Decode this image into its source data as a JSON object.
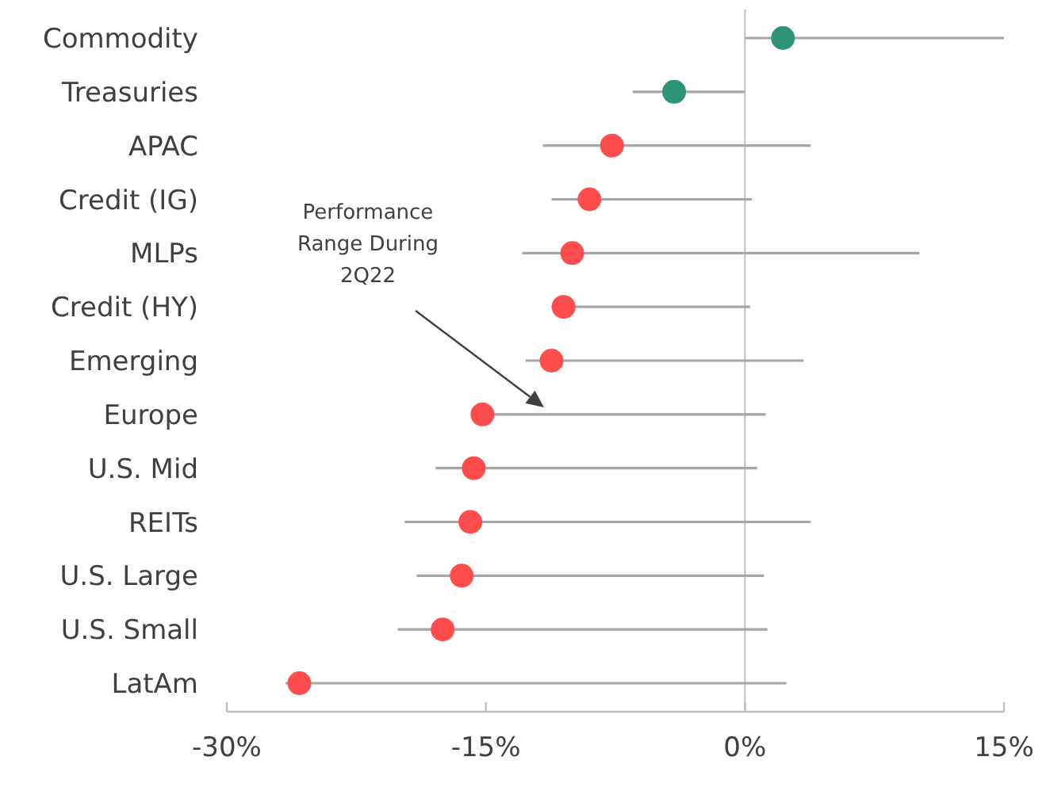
{
  "chart_data": {
    "type": "scatter",
    "orientation": "horizontal",
    "categories": [
      "Commodity",
      "Treasuries",
      "APAC",
      "Credit (IG)",
      "MLPs",
      "Credit (HY)",
      "Emerging",
      "Europe",
      "U.S. Mid",
      "REITs",
      "U.S. Large",
      "U.S. Small",
      "LatAm"
    ],
    "series": [
      {
        "values": [
          2.2,
          -4.1,
          -7.7,
          -9.0,
          -10.0,
          -10.5,
          -11.2,
          -15.2,
          -15.7,
          -15.9,
          -16.4,
          -17.5,
          -25.8
        ],
        "colors": [
          "#2e9477",
          "#2e9477",
          "#ff4c4c",
          "#ff4c4c",
          "#ff4c4c",
          "#ff4c4c",
          "#ff4c4c",
          "#ff4c4c",
          "#ff4c4c",
          "#ff4c4c",
          "#ff4c4c",
          "#ff4c4c",
          "#ff4c4c"
        ],
        "errors": [
          [
            0,
            15
          ],
          [
            -6.5,
            0
          ],
          [
            -11.7,
            3.8
          ],
          [
            -11.2,
            0.4
          ],
          [
            -12.9,
            10.1
          ],
          [
            -11.2,
            0.3
          ],
          [
            -12.7,
            3.4
          ],
          [
            -15.8,
            1.2
          ],
          [
            -17.9,
            0.7
          ],
          [
            -19.7,
            3.8
          ],
          [
            -19.0,
            1.1
          ],
          [
            -20.1,
            1.3
          ],
          [
            -26.6,
            2.4
          ]
        ]
      }
    ],
    "xlim": [
      -30,
      15
    ],
    "xticks": [
      {
        "value": -30,
        "label": "-30%"
      },
      {
        "value": -15,
        "label": "-15%"
      },
      {
        "value": 0,
        "label": "0%"
      },
      {
        "value": 15,
        "label": "15%"
      }
    ],
    "ref_lines": [
      {
        "axis": "x",
        "value": 0,
        "color": "#c8c8c8"
      }
    ],
    "annotations": [
      "Performance\nRange During\n2Q22"
    ],
    "marker": "circle"
  }
}
